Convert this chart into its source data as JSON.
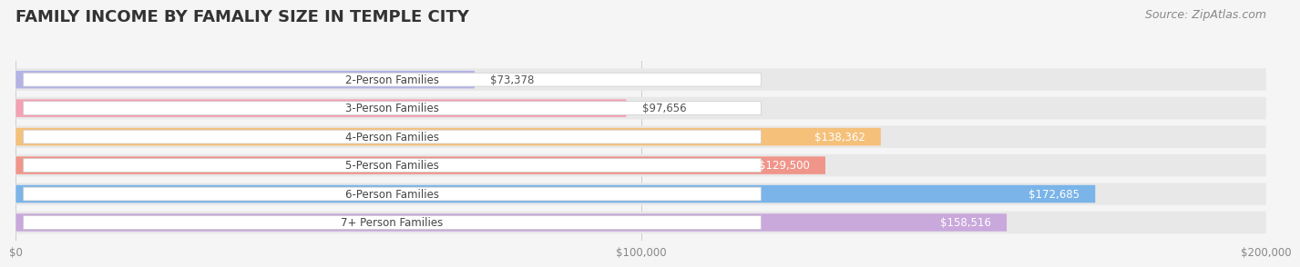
{
  "title": "FAMILY INCOME BY FAMALIY SIZE IN TEMPLE CITY",
  "source": "Source: ZipAtlas.com",
  "categories": [
    "2-Person Families",
    "3-Person Families",
    "4-Person Families",
    "5-Person Families",
    "6-Person Families",
    "7+ Person Families"
  ],
  "values": [
    73378,
    97656,
    138362,
    129500,
    172685,
    158516
  ],
  "bar_colors": [
    "#b3b3e6",
    "#f4a0b5",
    "#f5c07a",
    "#f0958a",
    "#7ab4e8",
    "#c9a8dc"
  ],
  "value_label_inside": [
    false,
    false,
    true,
    true,
    true,
    true
  ],
  "bg_color": "#f5f5f5",
  "bar_bg_color": "#e8e8e8",
  "xlim": [
    0,
    200000
  ],
  "xticks": [
    0,
    100000,
    200000
  ],
  "xtick_labels": [
    "$0",
    "$100,000",
    "$200,000"
  ],
  "title_fontsize": 13,
  "source_fontsize": 9,
  "label_fontsize": 8.5,
  "bar_label_fontsize": 8.5,
  "category_fontsize": 8.5
}
